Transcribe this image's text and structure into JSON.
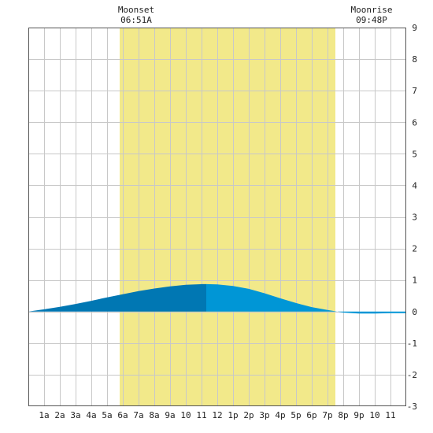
{
  "chart_data": {
    "type": "area",
    "title": "",
    "xlabel": "",
    "ylabel": "",
    "x_unit": "hour",
    "xlim": [
      0,
      24
    ],
    "ylim": [
      -3,
      9
    ],
    "y_ticks": [
      -3,
      -2,
      -1,
      0,
      1,
      2,
      3,
      4,
      5,
      6,
      7,
      8,
      9
    ],
    "x_tick_hours": [
      1,
      2,
      3,
      4,
      5,
      6,
      7,
      8,
      9,
      10,
      11,
      12,
      13,
      14,
      15,
      16,
      17,
      18,
      19,
      20,
      21,
      22,
      23
    ],
    "x_tick_labels": [
      "1a",
      "2a",
      "3a",
      "4a",
      "5a",
      "6a",
      "7a",
      "8a",
      "9a",
      "10",
      "11",
      "12",
      "1p",
      "2p",
      "3p",
      "4p",
      "5p",
      "6p",
      "7p",
      "8p",
      "9p",
      "10",
      "11"
    ],
    "grid": true,
    "daylight": {
      "start_hour": 5.8,
      "end_hour": 19.5,
      "color": "#f2e98a"
    },
    "moon_events": [
      {
        "label": "Moonset",
        "time": "06:51A",
        "hour": 6.85
      },
      {
        "label": "Moonrise",
        "time": "09:48P",
        "hour": 21.8
      }
    ],
    "tide": {
      "x": [
        0,
        1,
        2,
        3,
        4,
        5,
        6,
        7,
        8,
        9,
        10,
        11,
        11.3,
        12,
        13,
        14,
        15,
        16,
        17,
        18,
        19,
        20,
        21,
        22,
        23,
        24
      ],
      "y": [
        0.0,
        0.07,
        0.15,
        0.24,
        0.34,
        0.45,
        0.55,
        0.65,
        0.73,
        0.8,
        0.85,
        0.87,
        0.87,
        0.86,
        0.81,
        0.72,
        0.58,
        0.42,
        0.27,
        0.14,
        0.05,
        -0.03,
        -0.06,
        -0.06,
        -0.05,
        -0.05
      ],
      "rising_until_hour": 11.3,
      "colors": {
        "rising": "#0077b3",
        "falling": "#0096d6"
      }
    }
  }
}
